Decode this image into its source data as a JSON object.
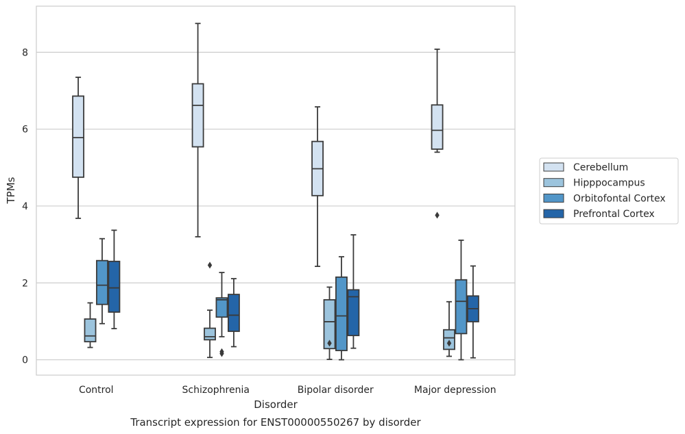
{
  "chart_data": {
    "type": "box",
    "title": "Transcript expression for ENST00000550267 by disorder",
    "xlabel": "Disorder",
    "ylabel": "TPMs",
    "ylim": [
      -0.4,
      9.2
    ],
    "yticks": [
      0,
      2,
      4,
      6,
      8
    ],
    "grid": "horizontal",
    "legend_position": "right",
    "categories": [
      "Control",
      "Schizophrenia",
      "Bipolar disorder",
      "Major depression"
    ],
    "series": [
      {
        "name": "Cerebellum",
        "color": "#d3e2f1",
        "boxes": [
          {
            "whislo": 3.68,
            "q1": 4.75,
            "med": 5.78,
            "q3": 6.86,
            "whishi": 7.35,
            "fliers": []
          },
          {
            "whislo": 3.2,
            "q1": 5.54,
            "med": 6.62,
            "q3": 7.18,
            "whishi": 8.75,
            "fliers": []
          },
          {
            "whislo": 2.43,
            "q1": 4.27,
            "med": 4.97,
            "q3": 5.68,
            "whishi": 6.58,
            "fliers": []
          },
          {
            "whislo": 5.4,
            "q1": 5.48,
            "med": 5.97,
            "q3": 6.63,
            "whishi": 8.08,
            "fliers": [
              3.76
            ]
          }
        ]
      },
      {
        "name": "Hipppocampus",
        "color": "#9cc4dd",
        "boxes": [
          {
            "whislo": 0.32,
            "q1": 0.47,
            "med": 0.62,
            "q3": 1.06,
            "whishi": 1.48,
            "fliers": []
          },
          {
            "whislo": 0.06,
            "q1": 0.52,
            "med": 0.6,
            "q3": 0.82,
            "whishi": 1.29,
            "fliers": [
              2.46
            ]
          },
          {
            "whislo": 0.01,
            "q1": 0.29,
            "med": 0.99,
            "q3": 1.56,
            "whishi": 1.89,
            "fliers": [
              0.43
            ]
          },
          {
            "whislo": 0.09,
            "q1": 0.27,
            "med": 0.57,
            "q3": 0.78,
            "whishi": 1.51,
            "fliers": [
              0.43
            ]
          }
        ]
      },
      {
        "name": "Orbitofontal Cortex",
        "color": "#5296c8",
        "boxes": [
          {
            "whislo": 0.94,
            "q1": 1.44,
            "med": 1.94,
            "q3": 2.58,
            "whishi": 3.15,
            "fliers": []
          },
          {
            "whislo": 0.6,
            "q1": 1.11,
            "med": 1.56,
            "q3": 1.61,
            "whishi": 2.27,
            "fliers": [
              0.21,
              0.16
            ]
          },
          {
            "whislo": 0.0,
            "q1": 0.24,
            "med": 1.14,
            "q3": 2.15,
            "whishi": 2.68,
            "fliers": []
          },
          {
            "whislo": 0.0,
            "q1": 0.68,
            "med": 1.52,
            "q3": 2.08,
            "whishi": 3.11,
            "fliers": []
          }
        ]
      },
      {
        "name": "Prefrontal Cortex",
        "color": "#2465a8",
        "boxes": [
          {
            "whislo": 0.81,
            "q1": 1.24,
            "med": 1.87,
            "q3": 2.56,
            "whishi": 3.37,
            "fliers": []
          },
          {
            "whislo": 0.34,
            "q1": 0.74,
            "med": 1.16,
            "q3": 1.7,
            "whishi": 2.11,
            "fliers": []
          },
          {
            "whislo": 0.3,
            "q1": 0.63,
            "med": 1.64,
            "q3": 1.82,
            "whishi": 3.25,
            "fliers": []
          },
          {
            "whislo": 0.05,
            "q1": 0.99,
            "med": 1.33,
            "q3": 1.66,
            "whishi": 2.44,
            "fliers": []
          }
        ]
      }
    ]
  }
}
